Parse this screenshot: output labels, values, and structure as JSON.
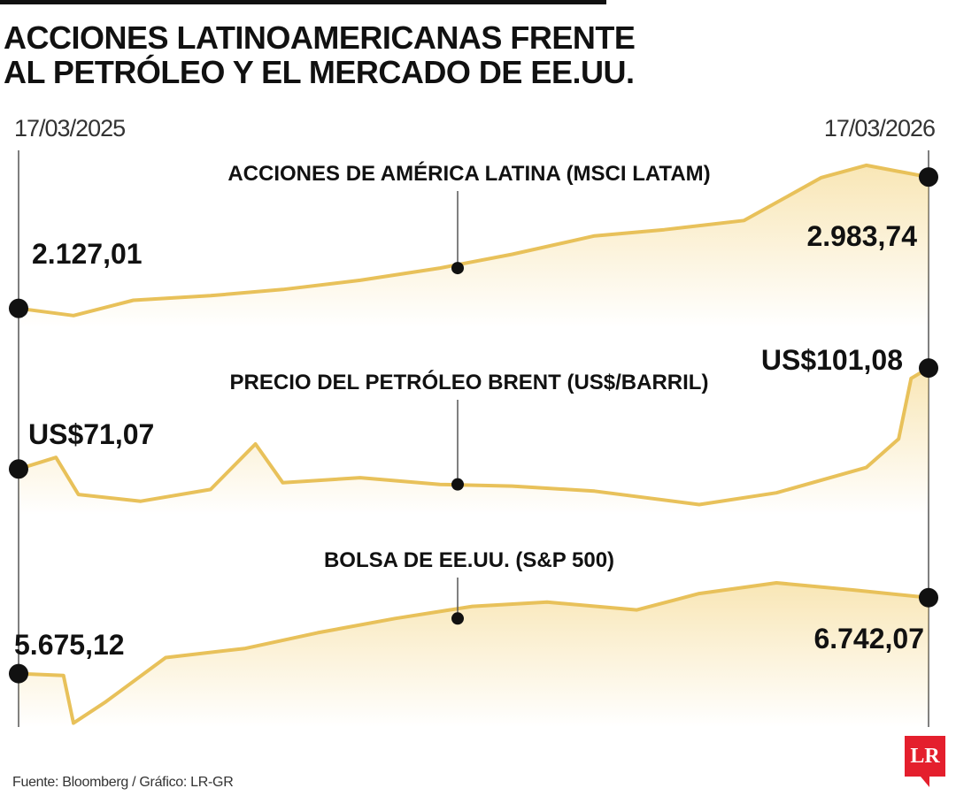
{
  "title_lines": [
    "ACCIONES LATINOAMERICANAS FRENTE",
    "AL PETRÓLEO Y EL MERCADO DE EE.UU."
  ],
  "source": "Fuente: Bloomberg / Gráfico: LR-GR",
  "logo": "LR",
  "colors": {
    "line": "#e8c15a",
    "fill": "#f3d27a",
    "marker": "#111111",
    "logo": "#e41f2d"
  },
  "chart_data": [
    {
      "type": "line",
      "title": "ACCIONES DE AMÉRICA LATINA (MSCI LATAM)",
      "start_label": "2.127,01",
      "end_label": "2.983,74",
      "x": [
        "17/03/2025",
        "2025-04-08",
        "2025-05-02",
        "2025-06-02",
        "2025-07-01",
        "2025-08-01",
        "2025-09-02",
        "2025-10-01",
        "2025-11-03",
        "2025-12-01",
        "2026-01-02",
        "2026-02-02",
        "2026-02-20",
        "17/03/2026"
      ],
      "y": [
        2127.01,
        2080,
        2180,
        2210,
        2250,
        2310,
        2390,
        2480,
        2600,
        2640,
        2700,
        2980,
        3060,
        2983.74
      ],
      "ylim": [
        2050,
        3100
      ]
    },
    {
      "type": "line",
      "title": "PRECIO DEL PETRÓLEO BRENT (US$/BARRIL)",
      "start_label": "US$71,07",
      "end_label": "US$101,08",
      "x": [
        "17/03/2025",
        "2025-04-01",
        "2025-04-10",
        "2025-05-05",
        "2025-06-02",
        "2025-06-20",
        "2025-07-01",
        "2025-08-01",
        "2025-09-02",
        "2025-10-01",
        "2025-11-03",
        "2025-12-15",
        "2026-01-15",
        "2026-02-20",
        "2026-03-05",
        "2026-03-10",
        "17/03/2026"
      ],
      "y": [
        71.07,
        74.5,
        63.5,
        61.5,
        65.0,
        78.5,
        67.0,
        68.5,
        66.5,
        66.0,
        64.5,
        60.5,
        64.0,
        71.5,
        80.0,
        98.0,
        101.08
      ],
      "ylim": [
        58,
        104
      ]
    },
    {
      "type": "line",
      "title": "BOLSA DE EE.UU. (S&P 500)",
      "start_label": "5.675,12",
      "end_label": "6.742,07",
      "x": [
        "17/03/2025",
        "2025-04-04",
        "2025-04-08",
        "2025-04-21",
        "2025-05-15",
        "2025-06-16",
        "2025-07-15",
        "2025-08-15",
        "2025-09-15",
        "2025-10-15",
        "2025-11-20",
        "2025-12-15",
        "2026-01-15",
        "2026-02-15",
        "17/03/2026"
      ],
      "y": [
        5675.12,
        5650,
        4980,
        5280,
        5900,
        6030,
        6250,
        6450,
        6620,
        6680,
        6570,
        6800,
        6950,
        6850,
        6742.07
      ],
      "ylim": [
        4950,
        7000
      ]
    }
  ]
}
